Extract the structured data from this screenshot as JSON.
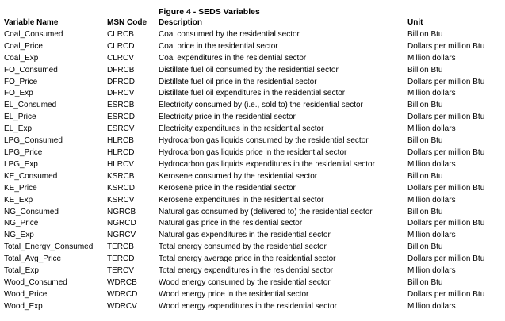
{
  "figure_title": "Figure 4 - SEDS Variables",
  "columns": {
    "variable_name": "Variable Name",
    "msn_code": "MSN Code",
    "description": "Description",
    "unit": "Unit"
  },
  "rows": [
    {
      "variable": "Coal_Consumed",
      "msn": "CLRCB",
      "description": "Coal consumed by the residential sector",
      "unit": "Billion Btu"
    },
    {
      "variable": "Coal_Price",
      "msn": "CLRCD",
      "description": "Coal price in the residential sector",
      "unit": "Dollars per million Btu"
    },
    {
      "variable": "Coal_Exp",
      "msn": "CLRCV",
      "description": "Coal expenditures in the residential sector",
      "unit": "Million dollars"
    },
    {
      "variable": "FO_Consumed",
      "msn": "DFRCB",
      "description": "Distillate fuel oil consumed by the residential sector",
      "unit": "Billion Btu"
    },
    {
      "variable": "FO_Price",
      "msn": "DFRCD",
      "description": "Distillate fuel oil price in the residential sector",
      "unit": "Dollars per million Btu"
    },
    {
      "variable": "FO_Exp",
      "msn": "DFRCV",
      "description": "Distillate fuel oil expenditures in the residential sector",
      "unit": "Million dollars"
    },
    {
      "variable": "EL_Consumed",
      "msn": "ESRCB",
      "description": "Electricity consumed by (i.e., sold to) the residential sector",
      "unit": "Billion Btu"
    },
    {
      "variable": "EL_Price",
      "msn": "ESRCD",
      "description": "Electricity price in the residential sector",
      "unit": "Dollars per million Btu"
    },
    {
      "variable": "EL_Exp",
      "msn": "ESRCV",
      "description": "Electricity expenditures in the residential sector",
      "unit": "Million dollars"
    },
    {
      "variable": "LPG_Consumed",
      "msn": "HLRCB",
      "description": "Hydrocarbon gas liquids consumed by the residential sector",
      "unit": "Billion Btu"
    },
    {
      "variable": "LPG_Price",
      "msn": "HLRCD",
      "description": "Hydrocarbon gas liquids price in the residential sector",
      "unit": "Dollars per million Btu"
    },
    {
      "variable": "LPG_Exp",
      "msn": "HLRCV",
      "description": "Hydrocarbon gas liquids expenditures in the residential sector",
      "unit": "Million dollars"
    },
    {
      "variable": "KE_Consumed",
      "msn": "KSRCB",
      "description": "Kerosene consumed by the residential sector",
      "unit": "Billion Btu"
    },
    {
      "variable": "KE_Price",
      "msn": "KSRCD",
      "description": "Kerosene price in the residential sector",
      "unit": "Dollars per million Btu"
    },
    {
      "variable": "KE_Exp",
      "msn": "KSRCV",
      "description": "Kerosene expenditures in the residential sector",
      "unit": "Million dollars"
    },
    {
      "variable": "NG_Consumed",
      "msn": "NGRCB",
      "description": "Natural gas consumed by (delivered to) the residential sector",
      "unit": "Billion Btu"
    },
    {
      "variable": "NG_Price",
      "msn": "NGRCD",
      "description": "Natural gas price in the residential sector",
      "unit": "Dollars per million Btu"
    },
    {
      "variable": "NG_Exp",
      "msn": "NGRCV",
      "description": "Natural gas expenditures in the residential sector",
      "unit": "Million dollars"
    },
    {
      "variable": "Total_Energy_Consumed",
      "msn": "TERCB",
      "description": "Total energy consumed by the residential sector",
      "unit": "Billion Btu"
    },
    {
      "variable": "Total_Avg_Price",
      "msn": "TERCD",
      "description": "Total energy average price in the residential sector",
      "unit": "Dollars per million Btu"
    },
    {
      "variable": "Total_Exp",
      "msn": "TERCV",
      "description": "Total energy expenditures in the residential sector",
      "unit": "Million dollars"
    },
    {
      "variable": "Wood_Consumed",
      "msn": "WDRCB",
      "description": "Wood energy consumed by the residential sector",
      "unit": "Billion Btu"
    },
    {
      "variable": "Wood_Price",
      "msn": "WDRCD",
      "description": "Wood energy price in the residential sector",
      "unit": "Dollars per million Btu"
    },
    {
      "variable": "Wood_Exp",
      "msn": "WDRCV",
      "description": "Wood energy expenditures in the residential sector",
      "unit": "Million dollars"
    }
  ]
}
